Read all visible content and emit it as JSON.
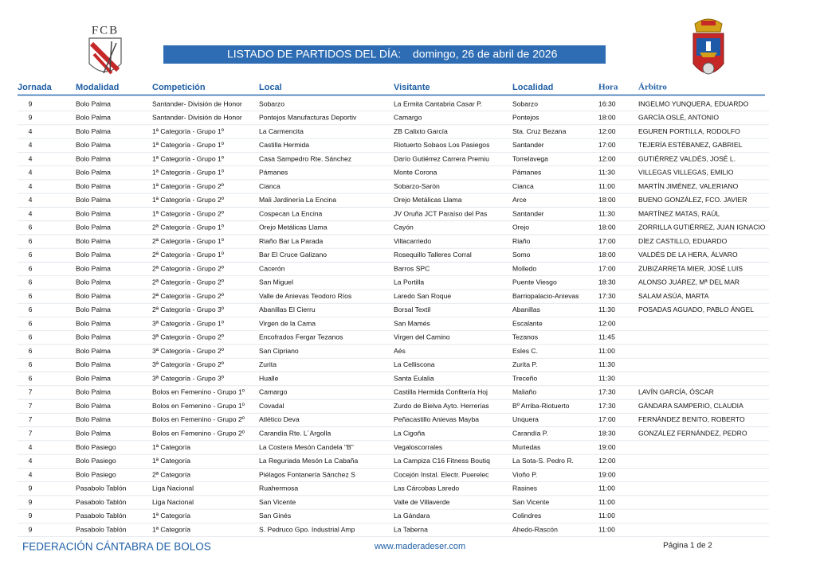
{
  "header": {
    "logo_text": "FCB",
    "title": "LISTADO DE PARTIDOS DEL DÍA:",
    "date": "domingo, 26 de abril de 2026"
  },
  "table": {
    "columns": [
      "Jornada",
      "Modalidad",
      "Competición",
      "Local",
      "Visitante",
      "Localidad",
      "Hora",
      "Árbitro"
    ],
    "rows": [
      [
        "9",
        "Bolo Palma",
        "Santander- División de Honor",
        "Sobarzo",
        "La Ermita Cantabria Casar P.",
        "Sobarzo",
        "16:30",
        "INGELMO YUNQUERA, EDUARDO"
      ],
      [
        "9",
        "Bolo Palma",
        "Santander- División de Honor",
        "Pontejos Manufacturas Deportiv",
        "Camargo",
        "Pontejos",
        "18:00",
        "GARCÍA OSLÉ, ANTONIO"
      ],
      [
        "4",
        "Bolo Palma",
        "1ª Categoría - Grupo 1º",
        "La Carmencita",
        "ZB Calixto García",
        "Sta. Cruz Bezana",
        "12:00",
        "EGUREN PORTILLA, RODOLFO"
      ],
      [
        "4",
        "Bolo Palma",
        "1ª Categoría - Grupo 1º",
        "Castilla Hermida",
        "Riotuerto Sobaos Los Pasiegos",
        "Santander",
        "17:00",
        "TEJERÍA ESTÉBANEZ, GABRIEL"
      ],
      [
        "4",
        "Bolo Palma",
        "1ª Categoría - Grupo 1º",
        "Casa Sampedro Rte. Sánchez",
        "Darío Gutiérrez Carrera Premiu",
        "Torrelavega",
        "12:00",
        "GUTIÉRREZ VALDÉS, JOSÉ L."
      ],
      [
        "4",
        "Bolo Palma",
        "1ª Categoría - Grupo 1º",
        "Pámanes",
        "Monte Corona",
        "Pámanes",
        "11:30",
        "VILLEGAS VILLEGAS, EMILIO"
      ],
      [
        "4",
        "Bolo Palma",
        "1ª Categoría - Grupo 2º",
        "Cianca",
        "Sobarzo-Sarón",
        "Cianca",
        "11:00",
        "MARTÍN JIMÉNEZ, VALERIANO"
      ],
      [
        "4",
        "Bolo Palma",
        "1ª Categoría - Grupo 2º",
        "Mali Jardinería La Encina",
        "Orejo Metálicas Llama",
        "Arce",
        "18:00",
        "BUENO GONZÁLEZ, FCO. JAVIER"
      ],
      [
        "4",
        "Bolo Palma",
        "1ª Categoría - Grupo 2º",
        "Cospecan La Encina",
        "JV Oruña JCT Paraíso del Pas",
        "Santander",
        "11:30",
        "MARTÍNEZ MATAS, RAÚL"
      ],
      [
        "6",
        "Bolo Palma",
        "2ª Categoría - Grupo 1º",
        "Orejo Metálicas Llama",
        "Cayón",
        "Orejo",
        "18:00",
        "ZORRILLA GUTIÉRREZ, JUAN IGNACIO"
      ],
      [
        "6",
        "Bolo Palma",
        "2ª Categoría - Grupo 1º",
        "Riaño Bar La Parada",
        "Villacarriedo",
        "Riaño",
        "17:00",
        "DÍEZ  CASTILLO, EDUARDO"
      ],
      [
        "6",
        "Bolo Palma",
        "2ª Categoría - Grupo 1º",
        "Bar El Cruce Galizano",
        "Rosequillo Talleres Corral",
        "Somo",
        "18:00",
        "VALDÉS DE LA HERA, ÁLVARO"
      ],
      [
        "6",
        "Bolo Palma",
        "2ª Categoría - Grupo 2º",
        "Cacerón",
        "Barros SPC",
        "Molledo",
        "17:00",
        "ZUBIZARRETA MIER, JOSÉ LUIS"
      ],
      [
        "6",
        "Bolo Palma",
        "2ª Categoría - Grupo 2º",
        "San Miguel",
        "La Portilla",
        "Puente Viesgo",
        "18:30",
        "ALONSO JUÁREZ, Mª DEL MAR"
      ],
      [
        "6",
        "Bolo Palma",
        "2ª Categoría - Grupo 2º",
        "Valle de Anievas Teodoro Ríos",
        "Laredo San Roque",
        "Barriopalacio-Anievas",
        "17:30",
        "SALAM ASÚA, MARTA"
      ],
      [
        "6",
        "Bolo Palma",
        "2ª Categoría - Grupo 3º",
        "Abanillas El Cierru",
        "Borsal Textil",
        "Abanillas",
        "11:30",
        "POSADAS AGUADO, PABLO ÁNGEL"
      ],
      [
        "6",
        "Bolo Palma",
        "3ª Categoría - Grupo 1º",
        "Virgen de la Cama",
        "San Mamés",
        "Escalante",
        "12:00"
      ],
      [
        "6",
        "Bolo Palma",
        "3ª Categoría - Grupo 2º",
        "Encofrados Fergar Tezanos",
        "Virgen del Camino",
        "Tezanos",
        "11:45"
      ],
      [
        "6",
        "Bolo Palma",
        "3ª Categoría - Grupo 2º",
        "San Cipriano",
        "Aés",
        "Esles C.",
        "11:00"
      ],
      [
        "6",
        "Bolo Palma",
        "3ª Categoría - Grupo 2º",
        "Zurita",
        "La Celliscona",
        "Zurita P.",
        "11:30"
      ],
      [
        "6",
        "Bolo Palma",
        "3ª Categoría - Grupo 3º",
        "Hualle",
        "Santa Eulalia",
        "Treceño",
        "11:30"
      ],
      [
        "7",
        "Bolo Palma",
        "Bolos en Femenino - Grupo 1º",
        "Camargo",
        "Castilla Hermida Confitería Hoj",
        "Maliaño",
        "17:30",
        "LAVÍN GARCÍA, ÓSCAR"
      ],
      [
        "7",
        "Bolo Palma",
        "Bolos en Femenino - Grupo 1º",
        "Covadal",
        "Zurdo de Bielva Ayto. Herrerías",
        "Bº Arriba-Riotuerto",
        "17:30",
        "GÁNDARA SAMPERIO, CLAUDIA"
      ],
      [
        "7",
        "Bolo Palma",
        "Bolos en Femenino - Grupo 2º",
        "Atlético Deva",
        "Peñacastillo Anievas Mayba",
        "Unquera",
        "17:00",
        "FERNÁNDEZ BENITO, ROBERTO"
      ],
      [
        "7",
        "Bolo Palma",
        "Bolos en Femenino - Grupo 2º",
        "Carandía Rte. L´Argolla",
        "La Cigoña",
        "Carandía P.",
        "18:30",
        "GONZÁLEZ FERNÁNDEZ, PEDRO"
      ],
      [
        "4",
        "Bolo Pasiego",
        "1ª Categoría",
        "La Costera Mesón Candela \"B\"",
        "Vegaloscorrales",
        "Muriedas",
        "19:00"
      ],
      [
        "4",
        "Bolo Pasiego",
        "1ª Categoría",
        "La Reguriada Mesón La Cabaña",
        "La Campiza C16 Fitness Boutiq",
        "La Sota-S. Pedro R.",
        "12:00"
      ],
      [
        "4",
        "Bolo Pasiego",
        "2ª Categoría",
        "Piélagos Fontanería Sánchez S",
        "Cocejón Instal. Electr. Puerelec",
        "Vioño P.",
        "19:00"
      ],
      [
        "9",
        "Pasabolo Tablón",
        "Liga Nacional",
        "Ruahermosa",
        "Las Cárcobas Laredo",
        "Rasines",
        "11:00"
      ],
      [
        "9",
        "Pasabolo Tablón",
        "Liga Nacional",
        "San Vicente",
        "Valle de Villaverde",
        "San Vicente",
        "11:00"
      ],
      [
        "9",
        "Pasabolo Tablón",
        "1ª Categoría",
        "San Ginés",
        "La Gándara",
        "Colindres",
        "11:00"
      ],
      [
        "9",
        "Pasabolo Tablón",
        "1ª Categoría",
        "S. Pedruco Gpo. Industrial Amp",
        "La Taberna",
        "Ahedo-Rascón",
        "11:00"
      ]
    ]
  },
  "footer": {
    "federation": "FEDERACIÓN CÁNTABRA DE BOLOS",
    "website": "www.maderadeser.com",
    "page": "Página 1 de 2"
  }
}
